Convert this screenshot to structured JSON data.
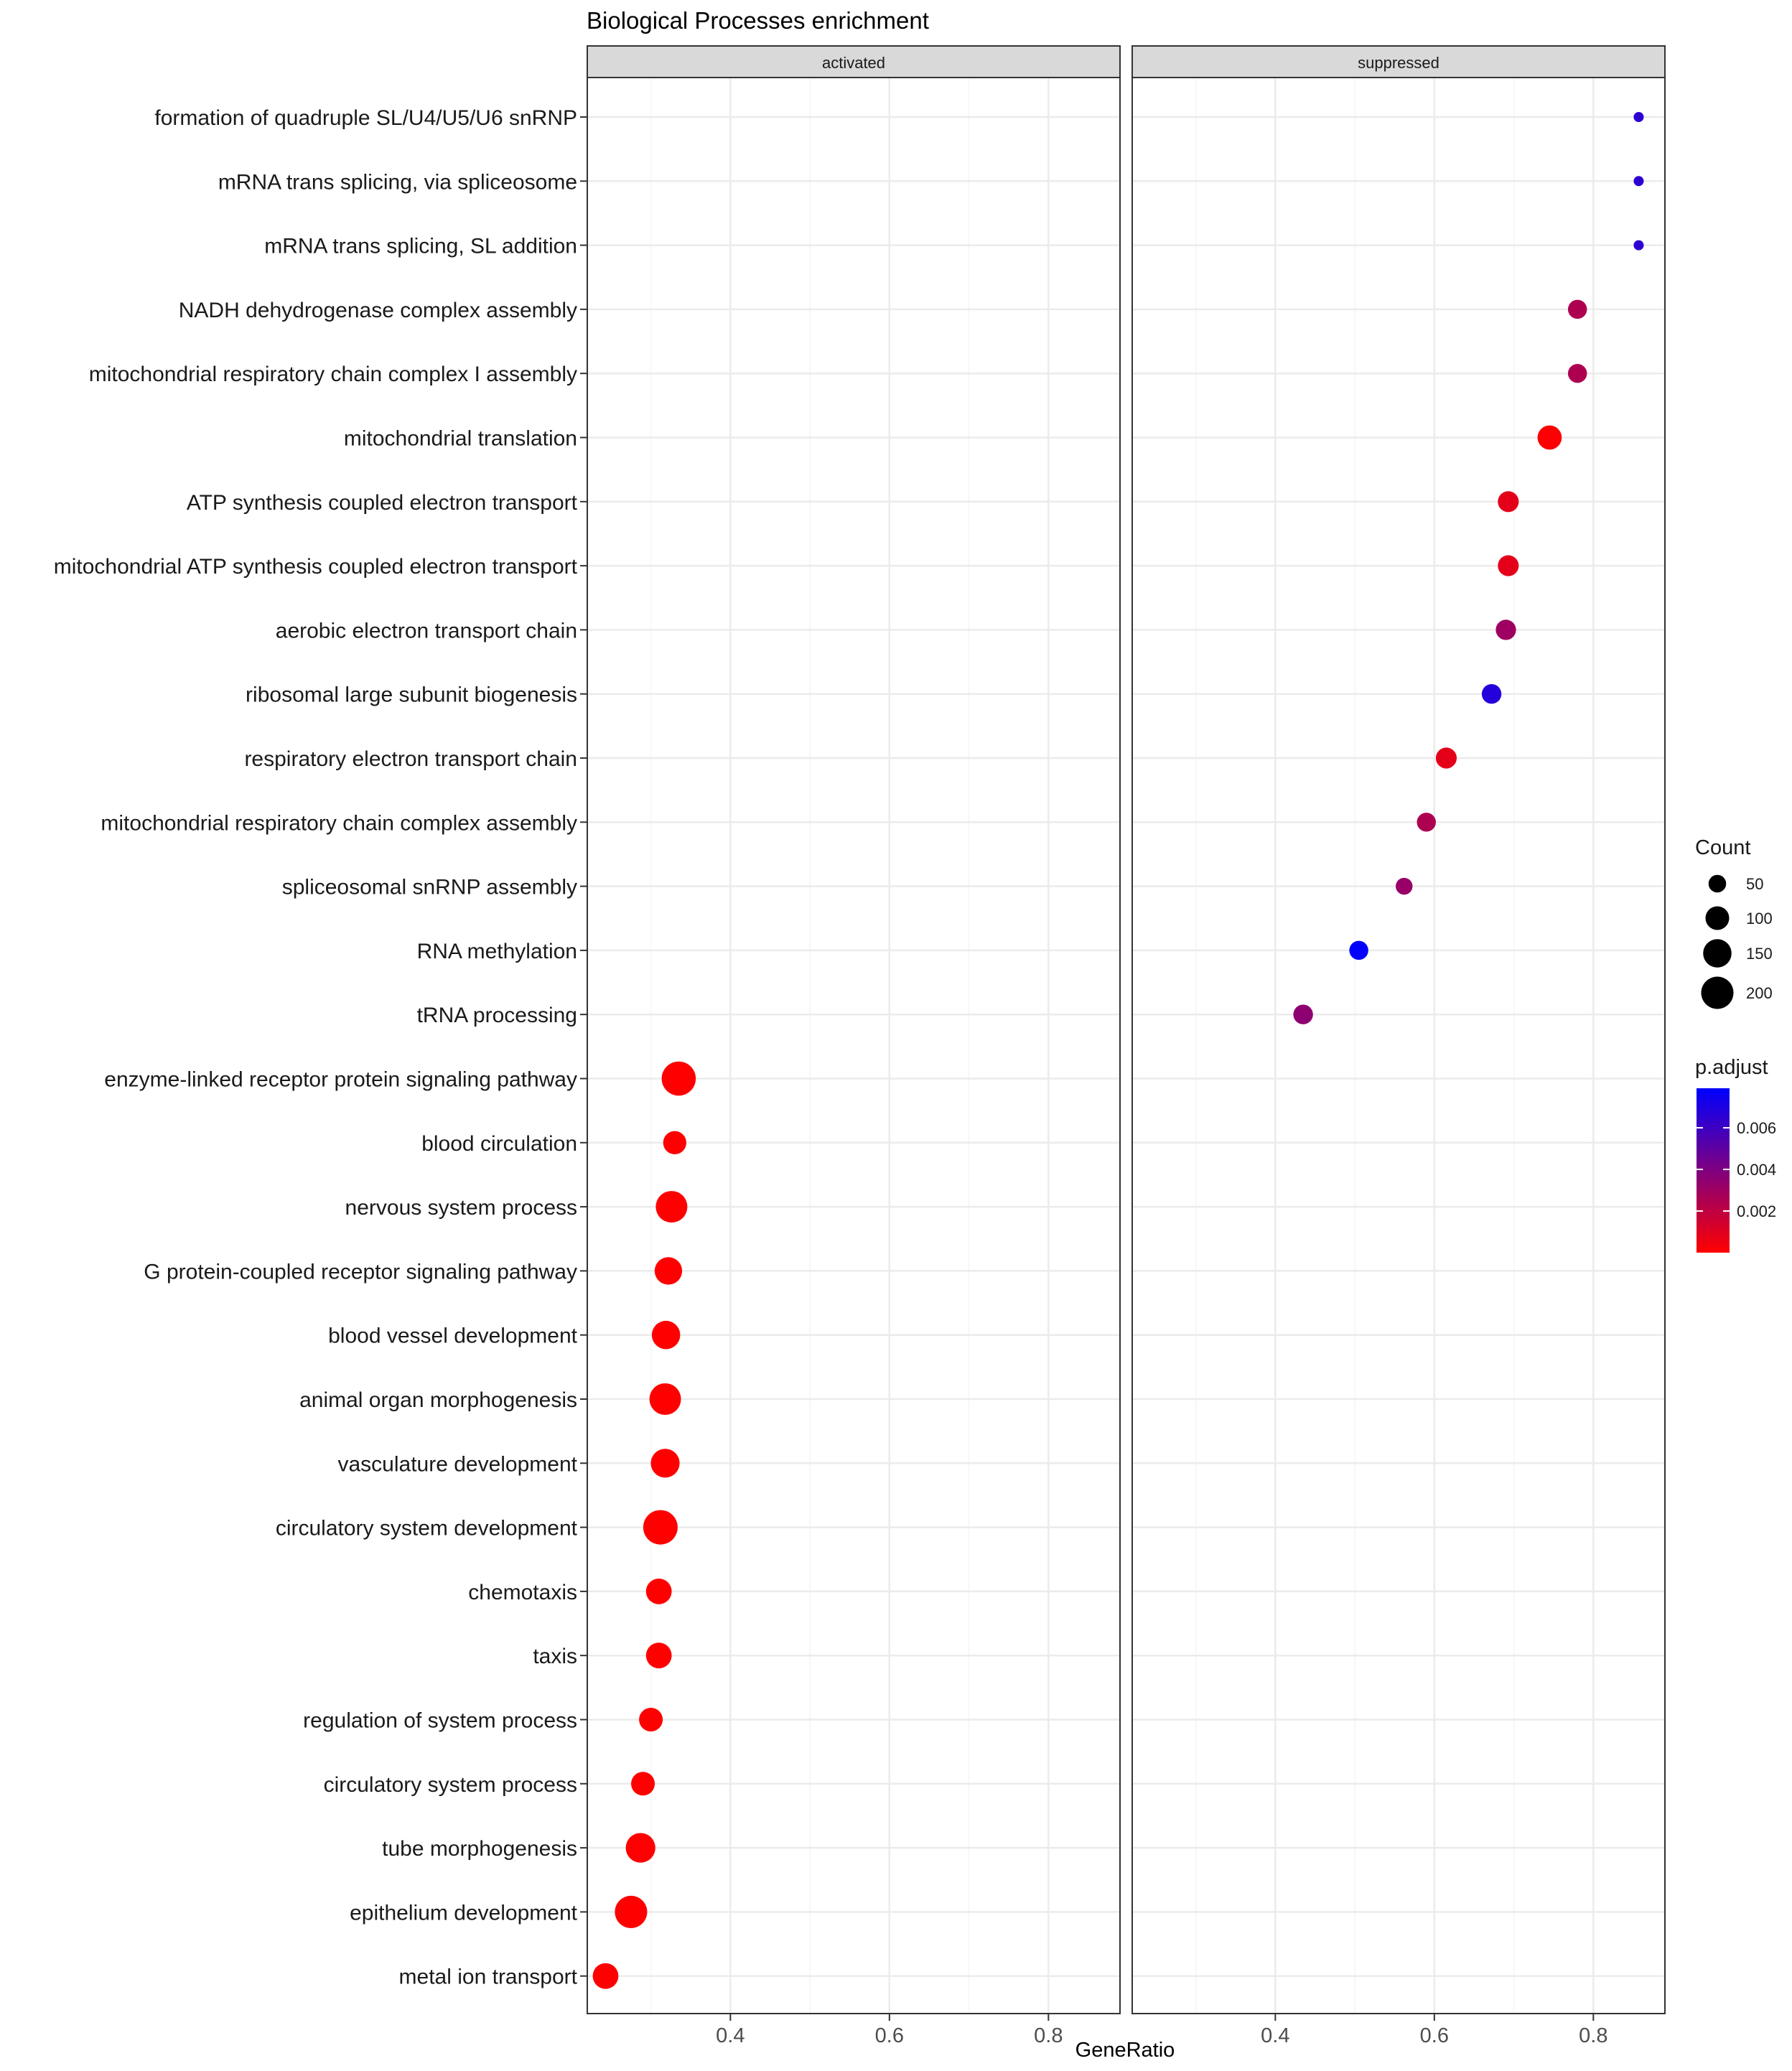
{
  "chart_data": {
    "type": "scatter",
    "title": "Biological Processes enrichment",
    "xlabel": "GeneRatio",
    "ylabel": "",
    "facets": [
      "activated",
      "suppressed"
    ],
    "xlim": [
      0.22,
      0.89
    ],
    "x_ticks": [
      0.4,
      0.6,
      0.8
    ],
    "x_tick_labels": [
      "0.4",
      "0.6",
      "0.8"
    ],
    "grid": true,
    "categories": [
      "formation of quadruple SL/U4/U5/U6 snRNP",
      "mRNA trans splicing, via spliceosome",
      "mRNA trans splicing, SL addition",
      "NADH dehydrogenase complex assembly",
      "mitochondrial respiratory chain complex I assembly",
      "mitochondrial translation",
      "ATP synthesis coupled electron transport",
      "mitochondrial ATP synthesis coupled electron transport",
      "aerobic electron transport chain",
      "ribosomal large subunit biogenesis",
      "respiratory electron transport chain",
      "mitochondrial respiratory chain complex assembly",
      "spliceosomal snRNP assembly",
      "RNA methylation",
      "tRNA processing",
      "enzyme-linked receptor protein signaling pathway",
      "blood circulation",
      "nervous system process",
      "G protein-coupled receptor signaling pathway",
      "blood vessel development",
      "animal organ morphogenesis",
      "vasculature development",
      "circulatory system development",
      "chemotaxis",
      "taxis",
      "regulation of system process",
      "circulatory system process",
      "tube morphogenesis",
      "epithelium development",
      "metal ion transport"
    ],
    "points": [
      {
        "term": "formation of quadruple SL/U4/U5/U6 snRNP",
        "facet": "suppressed",
        "gene_ratio": 0.857,
        "count": 12,
        "p_adjust": 0.0065
      },
      {
        "term": "mRNA trans splicing, via spliceosome",
        "facet": "suppressed",
        "gene_ratio": 0.857,
        "count": 12,
        "p_adjust": 0.0065
      },
      {
        "term": "mRNA trans splicing, SL addition",
        "facet": "suppressed",
        "gene_ratio": 0.857,
        "count": 12,
        "p_adjust": 0.0065
      },
      {
        "term": "NADH dehydrogenase complex assembly",
        "facet": "suppressed",
        "gene_ratio": 0.78,
        "count": 60,
        "p_adjust": 0.0025
      },
      {
        "term": "mitochondrial respiratory chain complex I assembly",
        "facet": "suppressed",
        "gene_ratio": 0.78,
        "count": 60,
        "p_adjust": 0.0025
      },
      {
        "term": "mitochondrial translation",
        "facet": "suppressed",
        "gene_ratio": 0.745,
        "count": 105,
        "p_adjust": 0.0001
      },
      {
        "term": "ATP synthesis coupled electron transport",
        "facet": "suppressed",
        "gene_ratio": 0.693,
        "count": 75,
        "p_adjust": 0.0008
      },
      {
        "term": "mitochondrial ATP synthesis coupled electron transport",
        "facet": "suppressed",
        "gene_ratio": 0.693,
        "count": 75,
        "p_adjust": 0.0008
      },
      {
        "term": "aerobic electron transport chain",
        "facet": "suppressed",
        "gene_ratio": 0.69,
        "count": 70,
        "p_adjust": 0.003
      },
      {
        "term": "ribosomal large subunit biogenesis",
        "facet": "suppressed",
        "gene_ratio": 0.672,
        "count": 65,
        "p_adjust": 0.0068
      },
      {
        "term": "respiratory electron transport chain",
        "facet": "suppressed",
        "gene_ratio": 0.615,
        "count": 75,
        "p_adjust": 0.0008
      },
      {
        "term": "mitochondrial respiratory chain complex assembly",
        "facet": "suppressed",
        "gene_ratio": 0.59,
        "count": 60,
        "p_adjust": 0.0025
      },
      {
        "term": "spliceosomal snRNP assembly",
        "facet": "suppressed",
        "gene_ratio": 0.562,
        "count": 45,
        "p_adjust": 0.0032
      },
      {
        "term": "RNA methylation",
        "facet": "suppressed",
        "gene_ratio": 0.505,
        "count": 60,
        "p_adjust": 0.0079
      },
      {
        "term": "tRNA processing",
        "facet": "suppressed",
        "gene_ratio": 0.435,
        "count": 65,
        "p_adjust": 0.0035
      },
      {
        "term": "enzyme-linked receptor protein signaling pathway",
        "facet": "activated",
        "gene_ratio": 0.335,
        "count": 225,
        "p_adjust": 1e-05
      },
      {
        "term": "blood circulation",
        "facet": "activated",
        "gene_ratio": 0.33,
        "count": 95,
        "p_adjust": 1e-05
      },
      {
        "term": "nervous system process",
        "facet": "activated",
        "gene_ratio": 0.326,
        "count": 190,
        "p_adjust": 1e-05
      },
      {
        "term": "G protein-coupled receptor signaling pathway",
        "facet": "activated",
        "gene_ratio": 0.322,
        "count": 140,
        "p_adjust": 1e-05
      },
      {
        "term": "blood vessel development",
        "facet": "activated",
        "gene_ratio": 0.319,
        "count": 150,
        "p_adjust": 1e-05
      },
      {
        "term": "animal organ morphogenesis",
        "facet": "activated",
        "gene_ratio": 0.318,
        "count": 190,
        "p_adjust": 1e-05
      },
      {
        "term": "vasculature development",
        "facet": "activated",
        "gene_ratio": 0.318,
        "count": 155,
        "p_adjust": 1e-05
      },
      {
        "term": "circulatory system development",
        "facet": "activated",
        "gene_ratio": 0.312,
        "count": 230,
        "p_adjust": 1e-05
      },
      {
        "term": "chemotaxis",
        "facet": "activated",
        "gene_ratio": 0.31,
        "count": 120,
        "p_adjust": 1e-05
      },
      {
        "term": "taxis",
        "facet": "activated",
        "gene_ratio": 0.31,
        "count": 120,
        "p_adjust": 1e-05
      },
      {
        "term": "regulation of system process",
        "facet": "activated",
        "gene_ratio": 0.3,
        "count": 100,
        "p_adjust": 1e-05
      },
      {
        "term": "circulatory system process",
        "facet": "activated",
        "gene_ratio": 0.29,
        "count": 100,
        "p_adjust": 1e-05
      },
      {
        "term": "tube morphogenesis",
        "facet": "activated",
        "gene_ratio": 0.287,
        "count": 165,
        "p_adjust": 1e-05
      },
      {
        "term": "epithelium development",
        "facet": "activated",
        "gene_ratio": 0.275,
        "count": 200,
        "p_adjust": 1e-05
      },
      {
        "term": "metal ion transport",
        "facet": "activated",
        "gene_ratio": 0.243,
        "count": 120,
        "p_adjust": 1e-05
      }
    ],
    "legend_size": {
      "title": "Count",
      "values": [
        50,
        100,
        150,
        200
      ],
      "labels": [
        "50",
        "100",
        "150",
        "200"
      ],
      "placement": "right"
    },
    "legend_color": {
      "title": "p.adjust",
      "range": [
        0.0,
        0.0079
      ],
      "ticks": [
        0.002,
        0.004,
        0.006
      ],
      "tick_labels": [
        "0.002",
        "0.004",
        "0.006"
      ],
      "low_color": "#FF0000",
      "high_color": "#0000FF",
      "placement": "right"
    },
    "colors": {
      "panel_border": "#333333",
      "strip_fill": "#D9D9D9",
      "grid_major": "#EBEBEB",
      "grid_minor": "#F5F5F5",
      "text": "#1A1A1A",
      "tick_text": "#4D4D4D"
    }
  }
}
